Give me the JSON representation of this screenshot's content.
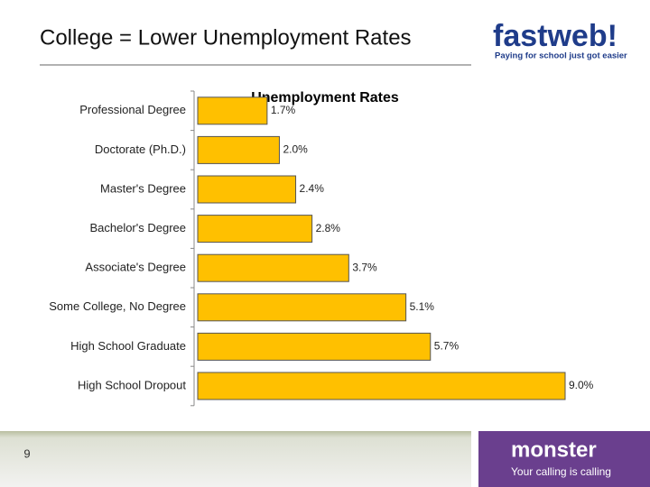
{
  "slide": {
    "title": "College = Lower Unemployment Rates",
    "page_number": "9",
    "top_logo": {
      "name": "fastweb!",
      "tagline": "Paying for school just got easier"
    },
    "bottom_logo": {
      "name": "monster",
      "tagline": "Your calling is calling"
    }
  },
  "chart_data": {
    "type": "bar",
    "orientation": "horizontal",
    "title": "Unemployment Rates",
    "categories": [
      "Professional Degree",
      "Doctorate (Ph.D.)",
      "Master's Degree",
      "Bachelor's Degree",
      "Associate's Degree",
      "Some College, No Degree",
      "High School Graduate",
      "High School Dropout"
    ],
    "values": [
      1.7,
      2.0,
      2.4,
      2.8,
      3.7,
      5.1,
      5.7,
      9.0
    ],
    "value_labels": [
      "1.7%",
      "2.0%",
      "2.4%",
      "2.8%",
      "3.7%",
      "5.1%",
      "5.7%",
      "9.0%"
    ],
    "color": "#ffc000"
  }
}
